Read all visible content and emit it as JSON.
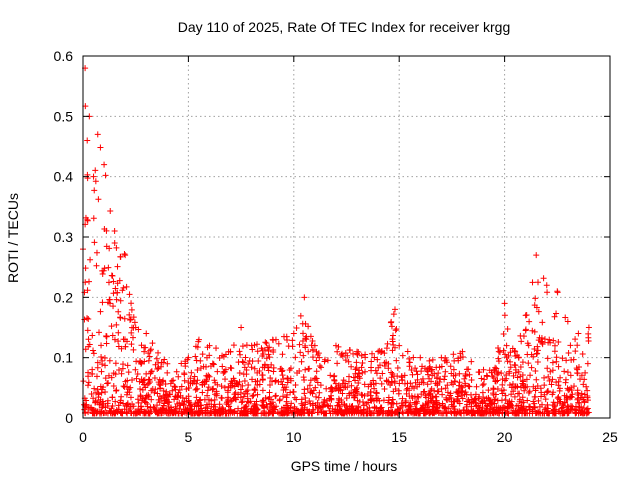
{
  "chart_data": {
    "type": "scatter",
    "title": "Day 110 of 2025, Rate Of TEC Index for receiver krgg",
    "xlabel": "GPS time / hours",
    "ylabel": "ROTI / TECUs",
    "xlim": [
      0,
      25
    ],
    "ylim": [
      0,
      0.6
    ],
    "x_ticks": [
      "0",
      "5",
      "10",
      "15",
      "20",
      "25"
    ],
    "y_ticks": [
      "0",
      "0.1",
      "0.2",
      "0.3",
      "0.4",
      "0.5",
      "0.6"
    ],
    "grid": true,
    "marker": "plus",
    "color": "#ff0000",
    "envelope": {
      "x": [
        0,
        0.1,
        0.2,
        0.3,
        0.5,
        0.7,
        1.0,
        1.5,
        2.0,
        2.5,
        3.0,
        4.0,
        5.0,
        5.5,
        6.0,
        7.0,
        7.5,
        8.0,
        9.0,
        10.0,
        10.5,
        11.0,
        12.0,
        13.0,
        14.0,
        14.8,
        15.0,
        16.0,
        17.0,
        18.0,
        19.0,
        19.5,
        20.0,
        20.5,
        21.0,
        21.5,
        22.0,
        22.5,
        23.0,
        23.5,
        24.0
      ],
      "y": [
        0.28,
        0.58,
        0.46,
        0.5,
        0.4,
        0.47,
        0.42,
        0.31,
        0.27,
        0.15,
        0.14,
        0.09,
        0.1,
        0.13,
        0.12,
        0.11,
        0.15,
        0.12,
        0.13,
        0.14,
        0.2,
        0.12,
        0.12,
        0.11,
        0.11,
        0.18,
        0.12,
        0.1,
        0.1,
        0.11,
        0.08,
        0.08,
        0.19,
        0.11,
        0.17,
        0.27,
        0.22,
        0.21,
        0.16,
        0.14,
        0.15
      ]
    },
    "baseline": 0.025
  }
}
